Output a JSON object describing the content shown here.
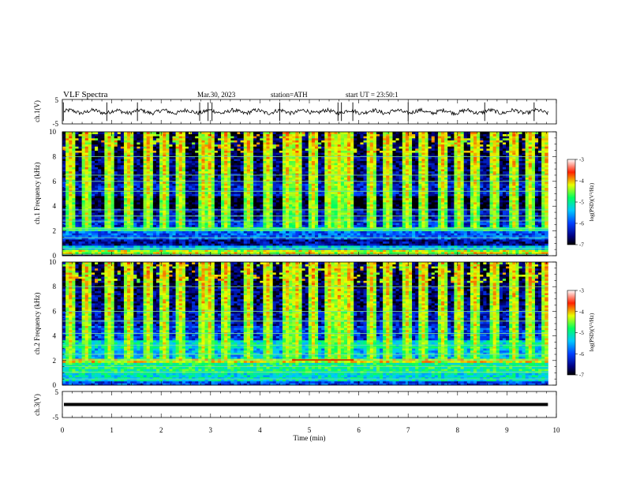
{
  "header": {
    "title": "VLF Spectra",
    "date": "Mar.30, 2023",
    "station": "station=ATH",
    "start": "start UT = 23:50:1"
  },
  "chart_data": [
    {
      "type": "line",
      "panel": "ch1-waveform",
      "ylabel": "ch.1(V)",
      "ylim": [
        -5,
        5
      ],
      "ytick_labels": [
        "5",
        "-5"
      ],
      "xlim": [
        0,
        10
      ],
      "trace_end_x": 9.83,
      "baseline": 0,
      "spike_x": [
        0.02,
        0.9,
        1.52,
        2.78,
        2.95,
        3.03,
        4.4,
        5.58,
        5.65,
        5.88,
        7.0,
        8.55,
        9.55
      ]
    },
    {
      "type": "heatmap",
      "panel": "ch1-spectrogram",
      "ylabel": "ch.1 Frequency (kHz)",
      "ylim": [
        0,
        10
      ],
      "ytick_labels": [
        "0",
        "2",
        "4",
        "6",
        "8",
        "10"
      ],
      "xlim": [
        0,
        10
      ],
      "data_end_x": 9.83,
      "colorbar": {
        "label": "log(PSD)(V²/Hz)",
        "range": [
          -7,
          -3
        ],
        "tick_labels": [
          "-3",
          "-4",
          "-5",
          "-6",
          "-7"
        ]
      },
      "bands": [
        {
          "f": [
            0.0,
            0.25
          ],
          "v": -7
        },
        {
          "f": [
            0.25,
            0.45
          ],
          "v": -4.3
        },
        {
          "f": [
            0.45,
            0.85
          ],
          "v": -5.4
        },
        {
          "f": [
            0.85,
            1.3
          ],
          "v": -6.5
        },
        {
          "f": [
            1.3,
            2.0
          ],
          "v": -5.9
        },
        {
          "f": [
            2.0,
            2.3
          ],
          "v": -5.0
        },
        {
          "f": [
            2.3,
            3.0
          ],
          "v": -6.2
        },
        {
          "f": [
            3.0,
            3.8
          ],
          "v": -6.5
        },
        {
          "f": [
            3.8,
            4.8
          ],
          "v": -6.95
        },
        {
          "f": [
            4.8,
            6.0
          ],
          "v": -6.3
        },
        {
          "f": [
            6.0,
            8.0
          ],
          "v": -6.6
        },
        {
          "f": [
            8.0,
            10.0
          ],
          "v": -6.8
        }
      ],
      "lines_khz": [
        0.1,
        0.6,
        1.45,
        2.05,
        2.2,
        2.8,
        3.2,
        3.7,
        5.2,
        6.0,
        6.5,
        8.0
      ],
      "bursts_x": [
        0.12,
        0.45,
        0.9,
        1.3,
        1.7,
        2.05,
        2.35,
        2.8,
        2.95,
        3.3,
        3.75,
        4.15,
        4.5,
        4.75,
        5.05,
        5.4,
        5.6,
        5.75,
        6.2,
        6.55,
        6.95,
        7.3,
        7.65,
        8.0,
        8.35,
        8.7,
        9.1,
        9.45,
        9.75
      ]
    },
    {
      "type": "heatmap",
      "panel": "ch2-spectrogram",
      "ylabel": "ch.2 Frequency (kHz)",
      "ylim": [
        0,
        10
      ],
      "ytick_labels": [
        "0",
        "2",
        "4",
        "6",
        "8",
        "10"
      ],
      "xlim": [
        0,
        10
      ],
      "data_end_x": 9.83,
      "colorbar": {
        "label": "log(PSD)(V²/Hz)",
        "range": [
          -7,
          -3
        ],
        "tick_labels": [
          "-3",
          "-4",
          "-5",
          "-6",
          "-7"
        ]
      },
      "bands": [
        {
          "f": [
            0.0,
            0.3
          ],
          "v": -6.0
        },
        {
          "f": [
            0.3,
            1.0
          ],
          "v": -5.2
        },
        {
          "f": [
            1.0,
            1.8
          ],
          "v": -4.9
        },
        {
          "f": [
            1.8,
            2.2
          ],
          "v": -4.2
        },
        {
          "f": [
            2.2,
            3.0
          ],
          "v": -5.5
        },
        {
          "f": [
            3.0,
            3.6
          ],
          "v": -5.2
        },
        {
          "f": [
            3.6,
            4.8
          ],
          "v": -6.1
        },
        {
          "f": [
            4.8,
            6.0
          ],
          "v": -6.4
        },
        {
          "f": [
            6.0,
            8.0
          ],
          "v": -6.6
        },
        {
          "f": [
            8.0,
            10.0
          ],
          "v": -6.8
        }
      ],
      "lines_khz": [
        0.5,
        1.05,
        1.5,
        2.05,
        2.5,
        3.25,
        4.2,
        5.2,
        6.0,
        8.0
      ],
      "red_line": {
        "x": [
          4.65,
          5.9
        ],
        "f": 2.05
      },
      "bursts_x": [
        0.12,
        0.45,
        0.9,
        1.3,
        1.7,
        2.05,
        2.35,
        2.8,
        2.95,
        3.3,
        3.75,
        4.15,
        4.5,
        4.75,
        5.05,
        5.4,
        5.6,
        5.75,
        6.2,
        6.55,
        6.95,
        7.3,
        7.65,
        8.0,
        8.35,
        8.7,
        9.1,
        9.45,
        9.75
      ]
    },
    {
      "type": "line",
      "panel": "ch3-waveform",
      "ylabel": "ch.3(V)",
      "ylim": [
        -5,
        5
      ],
      "ytick_labels": [
        "5",
        "-5"
      ],
      "xlim": [
        0,
        10
      ],
      "trace_end_x": 9.83,
      "level": 0
    }
  ],
  "x_axis": {
    "label": "Time (min)",
    "range": [
      0,
      10
    ],
    "tick_labels": [
      "0",
      "1",
      "2",
      "3",
      "4",
      "5",
      "6",
      "7",
      "8",
      "9",
      "10"
    ]
  }
}
